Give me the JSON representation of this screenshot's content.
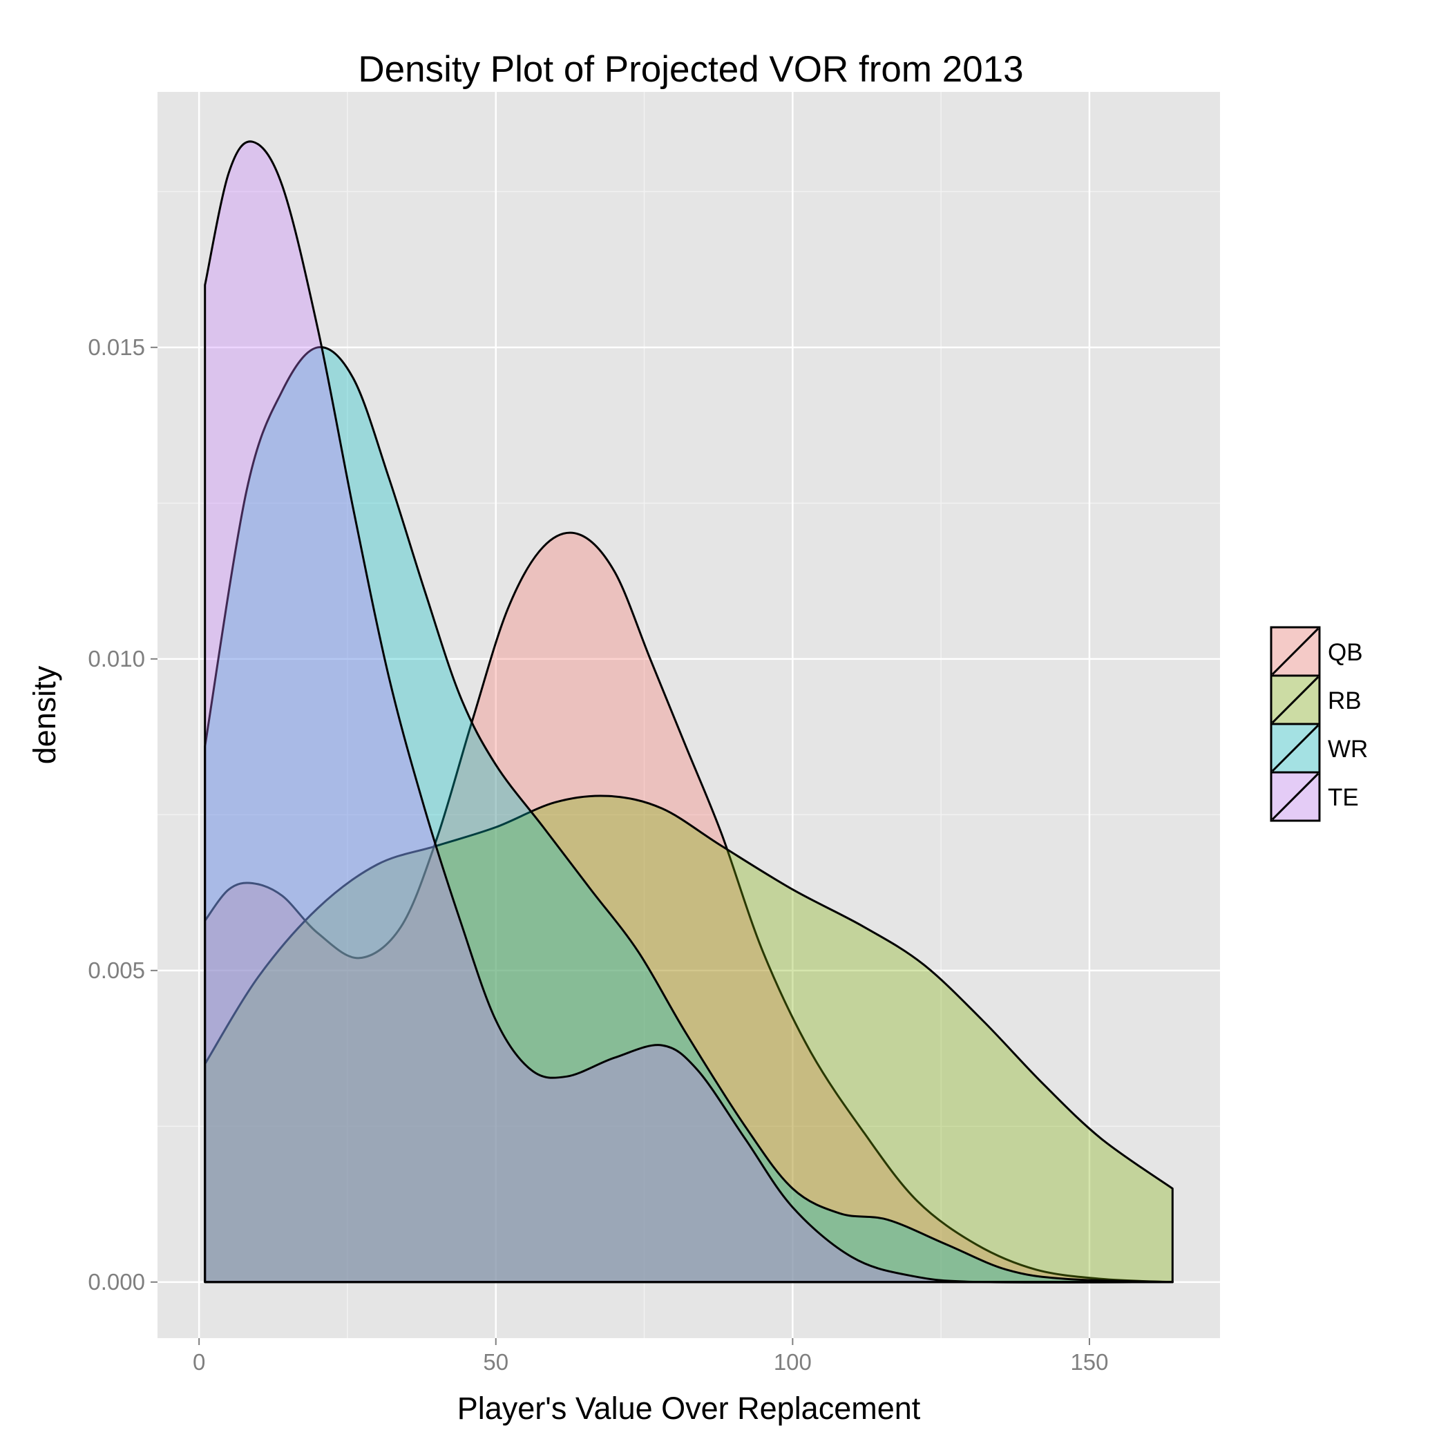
{
  "chart_data": {
    "type": "area",
    "title": "Density Plot of Projected VOR from 2013",
    "xlabel": "Player's Value Over Replacement",
    "ylabel": "density",
    "xlim": [
      -7,
      172
    ],
    "ylim": [
      -0.0009,
      0.0191
    ],
    "x_ticks": [
      0,
      50,
      100,
      150
    ],
    "x_tick_labels": [
      "0",
      "50",
      "100",
      "150"
    ],
    "y_ticks": [
      0,
      0.005,
      0.01,
      0.015
    ],
    "y_tick_labels": [
      "0.000",
      "0.005",
      "0.010",
      "0.015"
    ],
    "grid": true,
    "legend_position": "right",
    "series": [
      {
        "name": "QB",
        "color": "#F8766D",
        "points": [
          [
            1,
            0.0058
          ],
          [
            5,
            0.0063
          ],
          [
            9,
            0.0064
          ],
          [
            14,
            0.0062
          ],
          [
            20,
            0.0056
          ],
          [
            27,
            0.0052
          ],
          [
            34,
            0.0057
          ],
          [
            40,
            0.0071
          ],
          [
            46,
            0.009
          ],
          [
            52,
            0.0108
          ],
          [
            58,
            0.0118
          ],
          [
            64,
            0.012
          ],
          [
            70,
            0.0114
          ],
          [
            76,
            0.01
          ],
          [
            82,
            0.0086
          ],
          [
            88,
            0.0072
          ],
          [
            95,
            0.0053
          ],
          [
            103,
            0.0037
          ],
          [
            112,
            0.0024
          ],
          [
            121,
            0.0013
          ],
          [
            131,
            0.0006
          ],
          [
            141,
            0.0002
          ],
          [
            152,
            5e-05
          ],
          [
            164,
            0.0
          ]
        ]
      },
      {
        "name": "RB",
        "color": "#7CAE00",
        "points": [
          [
            1,
            0.0035
          ],
          [
            10,
            0.0049
          ],
          [
            20,
            0.006
          ],
          [
            30,
            0.0067
          ],
          [
            40,
            0.007
          ],
          [
            50,
            0.0073
          ],
          [
            60,
            0.0077
          ],
          [
            69,
            0.0078
          ],
          [
            78,
            0.0076
          ],
          [
            88,
            0.007
          ],
          [
            100,
            0.0063
          ],
          [
            112,
            0.0057
          ],
          [
            122,
            0.0051
          ],
          [
            132,
            0.0042
          ],
          [
            142,
            0.0032
          ],
          [
            152,
            0.0023
          ],
          [
            164,
            0.0015
          ]
        ]
      },
      {
        "name": "WR",
        "color": "#00BFC4",
        "points": [
          [
            1,
            0.0086
          ],
          [
            8,
            0.0127
          ],
          [
            14,
            0.0143
          ],
          [
            20,
            0.015
          ],
          [
            26,
            0.0145
          ],
          [
            32,
            0.0129
          ],
          [
            38,
            0.0111
          ],
          [
            44,
            0.0094
          ],
          [
            50,
            0.0083
          ],
          [
            58,
            0.0073
          ],
          [
            66,
            0.0063
          ],
          [
            74,
            0.0053
          ],
          [
            82,
            0.004
          ],
          [
            92,
            0.0025
          ],
          [
            100,
            0.0015
          ],
          [
            108,
            0.0011
          ],
          [
            116,
            0.001
          ],
          [
            126,
            0.0006
          ],
          [
            136,
            0.0002
          ],
          [
            146,
            5e-05
          ],
          [
            164,
            0.0
          ]
        ]
      },
      {
        "name": "TE",
        "color": "#C77CFF",
        "points": [
          [
            1,
            0.016
          ],
          [
            5,
            0.0178
          ],
          [
            9,
            0.0183
          ],
          [
            14,
            0.0176
          ],
          [
            20,
            0.0153
          ],
          [
            26,
            0.0124
          ],
          [
            32,
            0.0097
          ],
          [
            38,
            0.0076
          ],
          [
            44,
            0.0058
          ],
          [
            50,
            0.0042
          ],
          [
            56,
            0.0034
          ],
          [
            62,
            0.0033
          ],
          [
            70,
            0.0036
          ],
          [
            78,
            0.0038
          ],
          [
            84,
            0.0034
          ],
          [
            92,
            0.0023
          ],
          [
            100,
            0.0012
          ],
          [
            110,
            0.0004
          ],
          [
            120,
            0.0001
          ],
          [
            132,
            0.0
          ],
          [
            164,
            0.0
          ]
        ]
      }
    ]
  }
}
